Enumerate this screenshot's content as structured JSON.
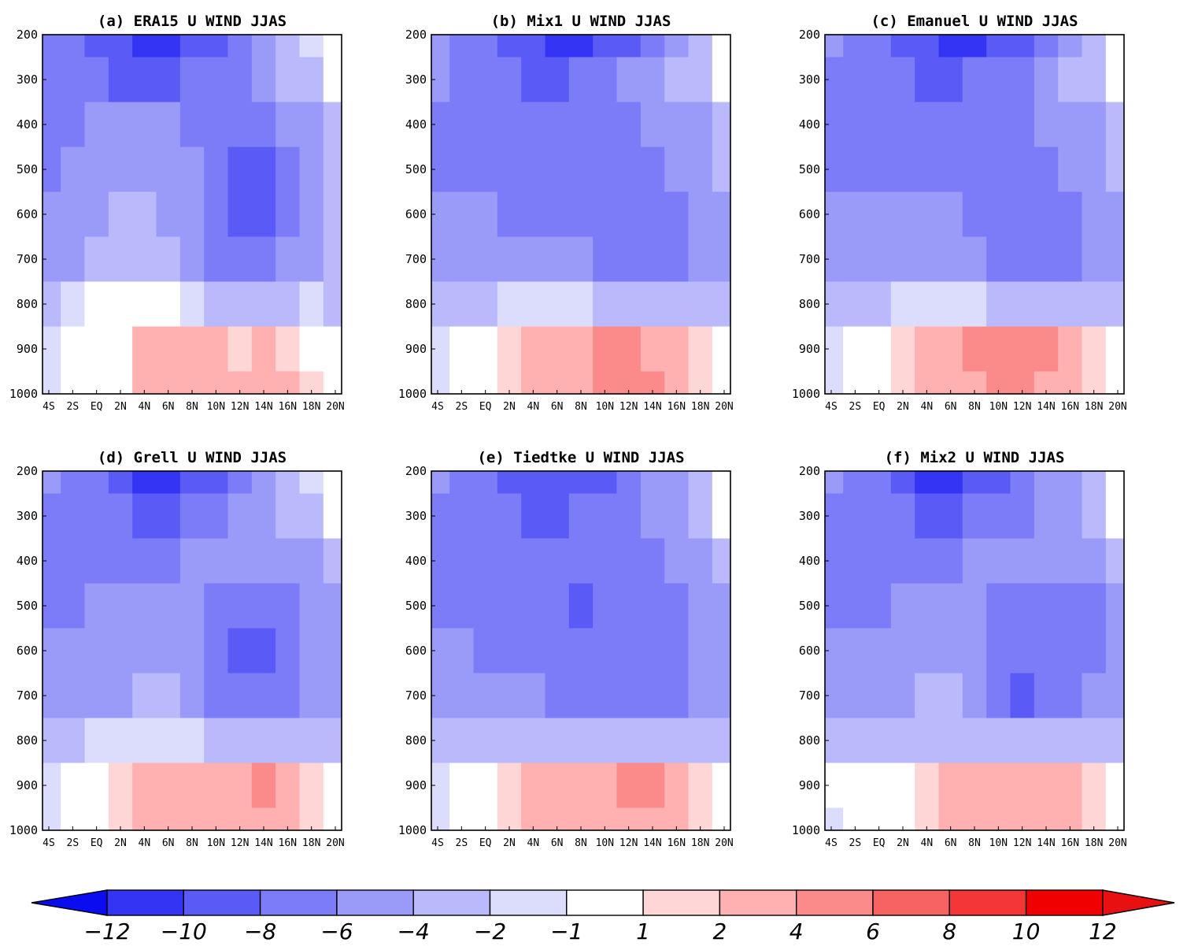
{
  "chart_data": {
    "type": "heatmap",
    "y_ticks": [
      "200",
      "300",
      "400",
      "500",
      "600",
      "700",
      "800",
      "900",
      "1000"
    ],
    "y_range": [
      200,
      1000
    ],
    "x_ticks": [
      "4S",
      "2S",
      "EQ",
      "2N",
      "4N",
      "6N",
      "8N",
      "10N",
      "12N",
      "14N",
      "16N",
      "18N",
      "20N"
    ],
    "x_range": [
      -5,
      20
    ],
    "panels": [
      {
        "title": "(a) ERA15 U WIND JJAS",
        "values": [
          [
            -7,
            -8,
            -9,
            -10,
            -11,
            -11,
            -10,
            -9,
            -7,
            -5,
            -3,
            -2,
            -1
          ],
          [
            -7,
            -8,
            -8,
            -9,
            -9,
            -9,
            -8,
            -7,
            -7,
            -6,
            -4,
            -3,
            -1
          ],
          [
            -8,
            -7,
            -6,
            -5,
            -5,
            -6,
            -7,
            -7,
            -8,
            -7,
            -6,
            -5,
            -3
          ],
          [
            -7,
            -6,
            -5,
            -5,
            -5,
            -5,
            -6,
            -8,
            -9,
            -9,
            -7,
            -5,
            -4
          ],
          [
            -6,
            -5,
            -5,
            -4,
            -4,
            -5,
            -6,
            -8,
            -9,
            -9,
            -7,
            -5,
            -4
          ],
          [
            -5,
            -5,
            -4,
            -4,
            -3,
            -4,
            -5,
            -7,
            -8,
            -8,
            -6,
            -5,
            -4
          ],
          [
            -3,
            -2,
            -1,
            -1,
            -1,
            -1,
            -2,
            -3,
            -3,
            -3,
            -3,
            -2,
            -3
          ],
          [
            -2,
            -1,
            0,
            0,
            2,
            3,
            3,
            2,
            1,
            2,
            1,
            0,
            -1
          ],
          [
            -2,
            -1,
            0,
            0,
            2,
            3,
            3,
            3,
            2,
            3,
            2,
            1,
            0
          ]
        ]
      },
      {
        "title": "(b) Mix1  U WIND JJAS",
        "values": [
          [
            -6,
            -7,
            -8,
            -9,
            -10,
            -11,
            -11,
            -10,
            -9,
            -7,
            -5,
            -3,
            -1
          ],
          [
            -6,
            -7,
            -7,
            -8,
            -9,
            -9,
            -8,
            -7,
            -6,
            -5,
            -4,
            -3,
            -1
          ],
          [
            -8,
            -8,
            -8,
            -8,
            -8,
            -7,
            -7,
            -7,
            -7,
            -6,
            -5,
            -5,
            -4
          ],
          [
            -7,
            -7,
            -7,
            -7,
            -8,
            -8,
            -8,
            -8,
            -8,
            -7,
            -6,
            -5,
            -4
          ],
          [
            -6,
            -6,
            -6,
            -7,
            -7,
            -7,
            -8,
            -8,
            -8,
            -8,
            -7,
            -6,
            -5
          ],
          [
            -5,
            -5,
            -5,
            -5,
            -5,
            -6,
            -6,
            -7,
            -8,
            -8,
            -7,
            -6,
            -5
          ],
          [
            -3,
            -3,
            -3,
            -2,
            -2,
            -2,
            -2,
            -3,
            -3,
            -3,
            -3,
            -3,
            -4
          ],
          [
            -2,
            -1,
            0,
            1,
            2,
            3,
            3,
            4,
            4,
            3,
            2,
            1,
            -1
          ],
          [
            -2,
            -1,
            0,
            1,
            2,
            3,
            3,
            4,
            4,
            4,
            3,
            1,
            0
          ]
        ]
      },
      {
        "title": "(c) Emanuel U WIND JJAS",
        "values": [
          [
            -6,
            -7,
            -8,
            -9,
            -10,
            -11,
            -11,
            -10,
            -9,
            -7,
            -5,
            -3,
            -1
          ],
          [
            -7,
            -7,
            -8,
            -8,
            -9,
            -9,
            -8,
            -7,
            -7,
            -6,
            -4,
            -3,
            -1
          ],
          [
            -8,
            -8,
            -8,
            -8,
            -8,
            -7,
            -7,
            -7,
            -7,
            -6,
            -5,
            -5,
            -4
          ],
          [
            -7,
            -7,
            -7,
            -7,
            -7,
            -7,
            -7,
            -8,
            -8,
            -7,
            -6,
            -5,
            -4
          ],
          [
            -6,
            -6,
            -6,
            -6,
            -6,
            -6,
            -7,
            -8,
            -8,
            -8,
            -7,
            -6,
            -5
          ],
          [
            -5,
            -5,
            -5,
            -5,
            -5,
            -5,
            -6,
            -7,
            -8,
            -8,
            -7,
            -6,
            -5
          ],
          [
            -3,
            -3,
            -3,
            -2,
            -2,
            -2,
            -2,
            -3,
            -3,
            -3,
            -3,
            -3,
            -4
          ],
          [
            -2,
            -1,
            0,
            1,
            2,
            3,
            4,
            4,
            4,
            4,
            3,
            1,
            -1
          ],
          [
            -2,
            -1,
            0,
            1,
            2,
            3,
            3,
            4,
            4,
            3,
            3,
            1,
            0
          ]
        ]
      },
      {
        "title": "(d) Grell U WIND JJAS",
        "values": [
          [
            -6,
            -7,
            -8,
            -10,
            -11,
            -11,
            -10,
            -9,
            -7,
            -5,
            -4,
            -2,
            -1
          ],
          [
            -7,
            -7,
            -8,
            -8,
            -9,
            -9,
            -8,
            -7,
            -6,
            -5,
            -4,
            -3,
            -1
          ],
          [
            -8,
            -8,
            -8,
            -7,
            -7,
            -7,
            -6,
            -6,
            -6,
            -6,
            -5,
            -5,
            -4
          ],
          [
            -7,
            -7,
            -6,
            -6,
            -6,
            -6,
            -6,
            -7,
            -8,
            -8,
            -7,
            -6,
            -5
          ],
          [
            -6,
            -6,
            -6,
            -5,
            -5,
            -5,
            -6,
            -8,
            -9,
            -9,
            -7,
            -6,
            -5
          ],
          [
            -5,
            -5,
            -5,
            -5,
            -4,
            -4,
            -5,
            -7,
            -8,
            -8,
            -7,
            -6,
            -5
          ],
          [
            -3,
            -3,
            -2,
            -2,
            -2,
            -2,
            -2,
            -3,
            -3,
            -3,
            -3,
            -3,
            -3
          ],
          [
            -2,
            -1,
            0,
            1,
            2,
            3,
            3,
            3,
            3,
            4,
            2,
            1,
            -1
          ],
          [
            -2,
            -1,
            0,
            1,
            2,
            3,
            3,
            3,
            3,
            3,
            2,
            1,
            0
          ]
        ]
      },
      {
        "title": "(e) Tiedtke U WIND JJAS",
        "values": [
          [
            -6,
            -7,
            -8,
            -9,
            -10,
            -10,
            -10,
            -9,
            -8,
            -6,
            -5,
            -3,
            -1
          ],
          [
            -7,
            -7,
            -8,
            -8,
            -9,
            -9,
            -8,
            -8,
            -7,
            -6,
            -5,
            -3,
            -1
          ],
          [
            -8,
            -8,
            -8,
            -8,
            -8,
            -8,
            -8,
            -8,
            -8,
            -7,
            -6,
            -5,
            -4
          ],
          [
            -7,
            -7,
            -8,
            -8,
            -8,
            -8,
            -9,
            -8,
            -8,
            -8,
            -7,
            -6,
            -5
          ],
          [
            -6,
            -6,
            -7,
            -7,
            -8,
            -8,
            -8,
            -8,
            -8,
            -8,
            -7,
            -6,
            -5
          ],
          [
            -5,
            -5,
            -5,
            -6,
            -6,
            -7,
            -7,
            -8,
            -8,
            -8,
            -7,
            -6,
            -5
          ],
          [
            -3,
            -3,
            -3,
            -3,
            -3,
            -3,
            -3,
            -3,
            -3,
            -3,
            -3,
            -3,
            -3
          ],
          [
            -2,
            -1,
            0,
            1,
            2,
            3,
            3,
            3,
            4,
            4,
            3,
            1,
            -1
          ],
          [
            -2,
            -1,
            0,
            1,
            2,
            3,
            3,
            3,
            3,
            3,
            3,
            1,
            0
          ]
        ]
      },
      {
        "title": "(f) Mix2 U WIND JJAS",
        "values": [
          [
            -6,
            -7,
            -8,
            -10,
            -11,
            -11,
            -10,
            -9,
            -8,
            -6,
            -5,
            -3,
            -1
          ],
          [
            -7,
            -7,
            -8,
            -8,
            -9,
            -9,
            -8,
            -7,
            -7,
            -6,
            -5,
            -3,
            -1
          ],
          [
            -8,
            -8,
            -8,
            -7,
            -7,
            -7,
            -6,
            -6,
            -6,
            -6,
            -5,
            -5,
            -4
          ],
          [
            -7,
            -7,
            -7,
            -6,
            -6,
            -6,
            -6,
            -7,
            -8,
            -8,
            -8,
            -7,
            -5
          ],
          [
            -6,
            -6,
            -6,
            -6,
            -5,
            -5,
            -6,
            -8,
            -8,
            -8,
            -8,
            -7,
            -6
          ],
          [
            -5,
            -5,
            -5,
            -5,
            -4,
            -4,
            -5,
            -7,
            -9,
            -8,
            -7,
            -6,
            -5
          ],
          [
            -3,
            -3,
            -3,
            -3,
            -3,
            -3,
            -3,
            -3,
            -3,
            -3,
            -3,
            -3,
            -4
          ],
          [
            -1,
            -1,
            0,
            0,
            1,
            2,
            3,
            3,
            3,
            3,
            2,
            1,
            -1
          ],
          [
            -2,
            -1,
            0,
            0,
            1,
            2,
            2,
            3,
            3,
            3,
            2,
            1,
            0
          ]
        ]
      }
    ],
    "colorbar": {
      "labels": [
        "-12",
        "-10",
        "-8",
        "-6",
        "-4",
        "-2",
        "-1",
        "1",
        "2",
        "4",
        "6",
        "8",
        "10",
        "12"
      ],
      "thresholds": [
        -12,
        -10,
        -8,
        -6,
        -4,
        -2,
        -1,
        1,
        2,
        4,
        6,
        8,
        10,
        12
      ],
      "colors": [
        "#0c0cf0",
        "#3434f4",
        "#5a5af6",
        "#7c7cf8",
        "#9a9af9",
        "#b9b9fb",
        "#dcdcfd",
        "#ffffff",
        "#ffd6d6",
        "#ffb0b0",
        "#fb8b8b",
        "#f76363",
        "#f53636",
        "#f00000",
        "#e81010"
      ]
    }
  }
}
